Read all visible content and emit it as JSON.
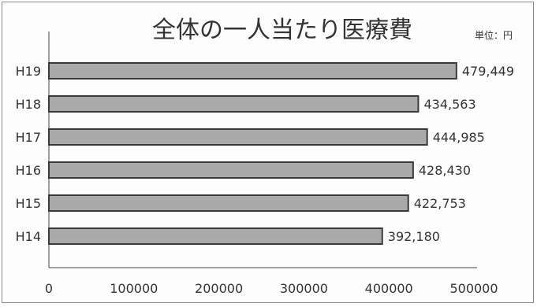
{
  "chart_data": {
    "type": "bar",
    "orientation": "horizontal",
    "title": "全体の一人当たり医療費",
    "unit_label": "単位：円",
    "categories": [
      "H19",
      "H18",
      "H17",
      "H16",
      "H15",
      "H14"
    ],
    "values": [
      479449,
      434563,
      444985,
      428430,
      422753,
      392180
    ],
    "value_labels": [
      "479,449",
      "434,563",
      "444,985",
      "428,430",
      "422,753",
      "392,180"
    ],
    "xlim": [
      0,
      500000
    ],
    "x_ticks": [
      "0",
      "100000",
      "200000",
      "300000",
      "400000",
      "500000"
    ],
    "grid": false,
    "legend": "none",
    "bar_color": "#a9a9a9",
    "bar_edge_color": "#3a3a3a"
  }
}
